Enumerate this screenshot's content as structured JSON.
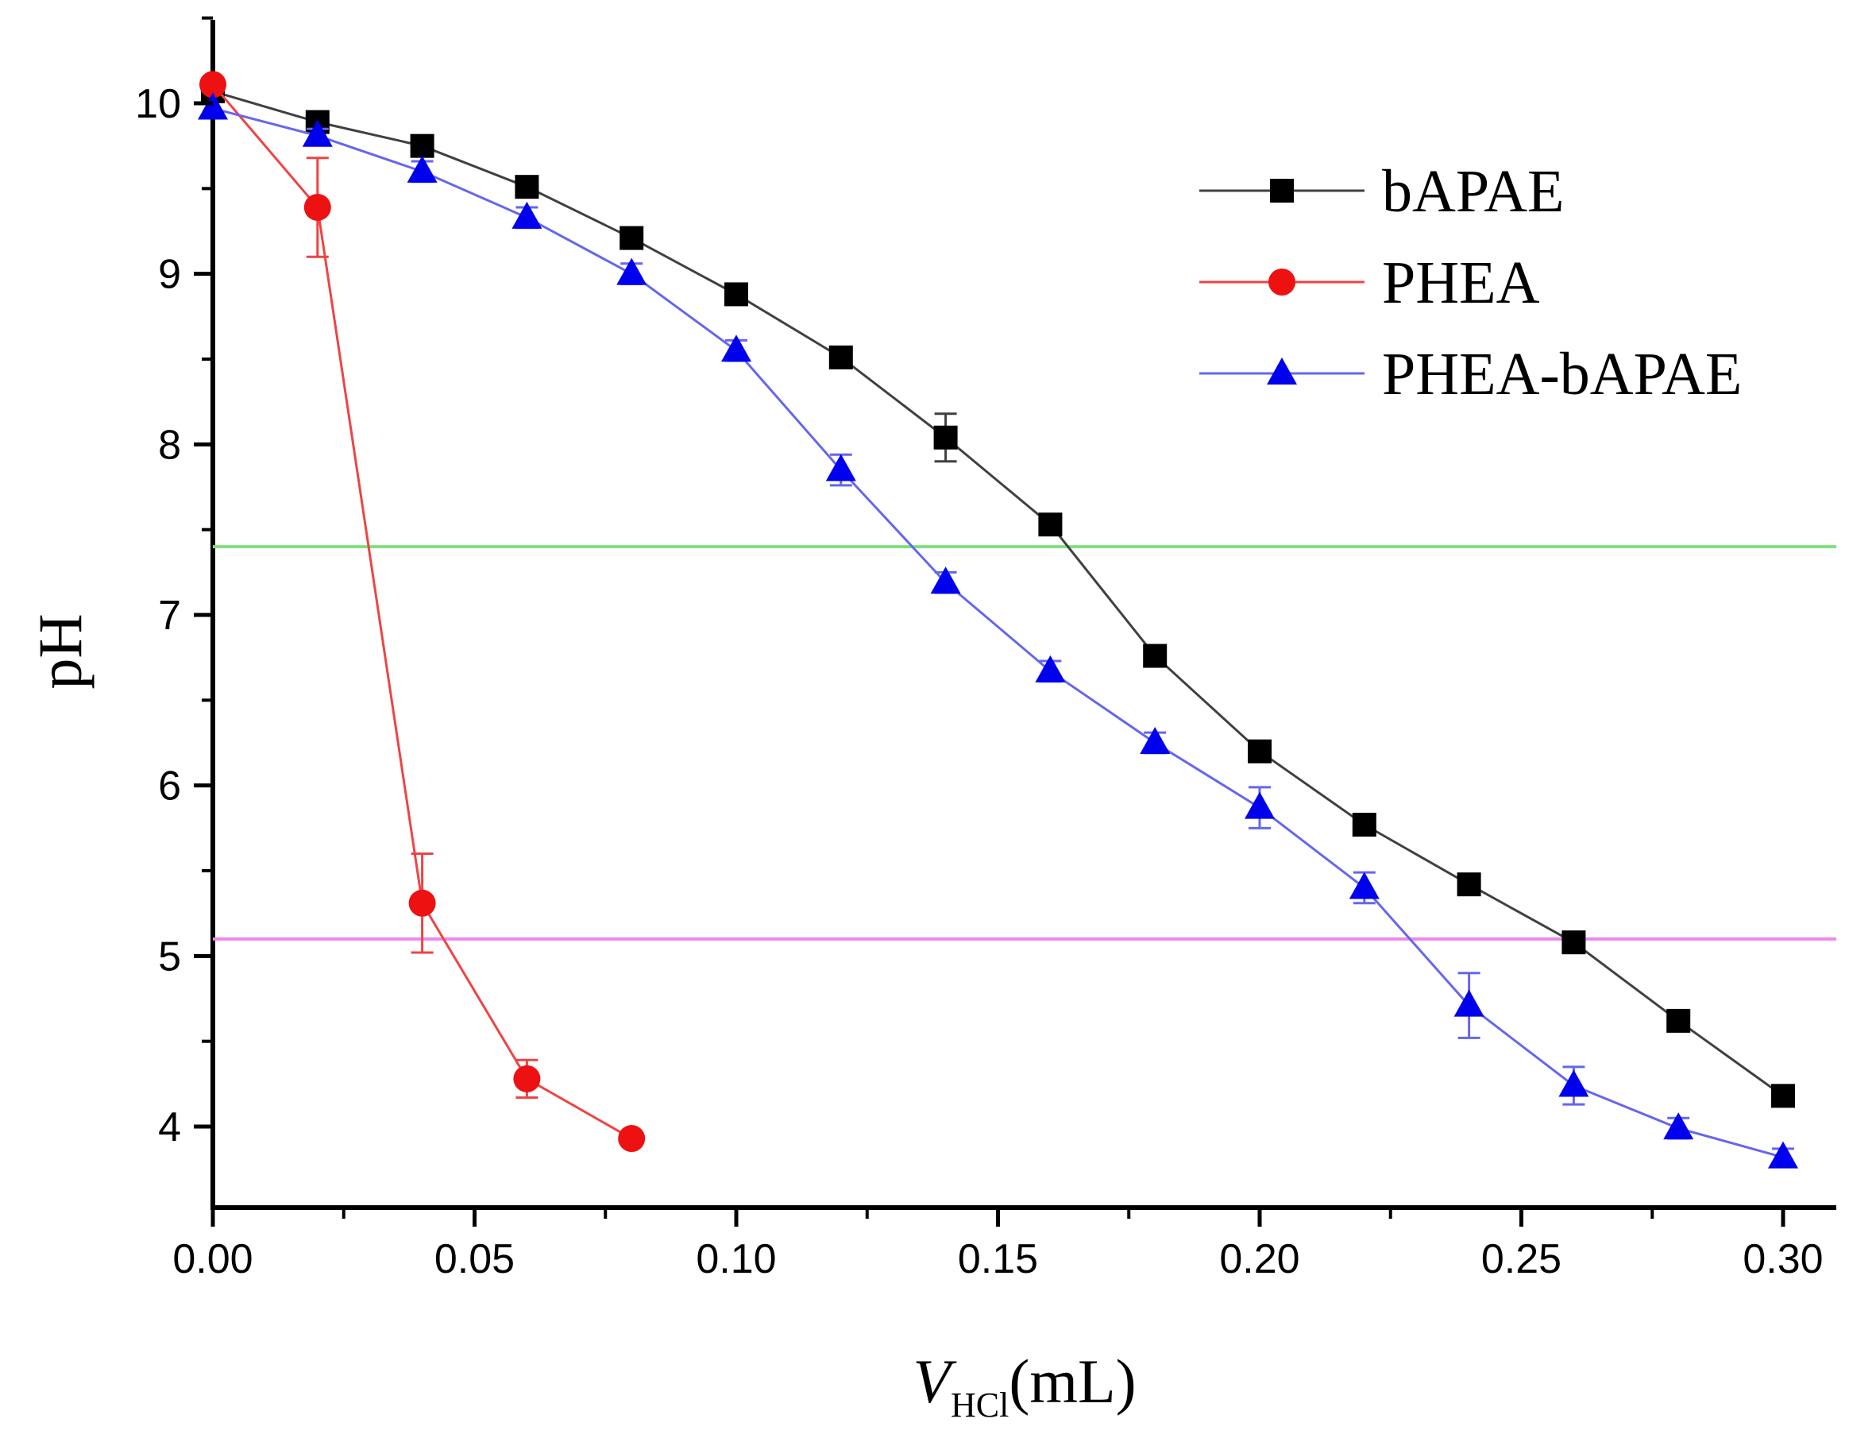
{
  "chart_data": {
    "type": "line",
    "title": "",
    "xlabel": {
      "main": "V",
      "sub": "HCl",
      "unit": "(mL)"
    },
    "ylabel": "pH",
    "xlim": [
      0.0,
      0.31
    ],
    "ylim": [
      3.55,
      10.5
    ],
    "xticks": [
      0.0,
      0.05,
      0.1,
      0.15,
      0.2,
      0.25,
      0.3
    ],
    "xtick_labels": [
      "0.00",
      "0.05",
      "0.10",
      "0.15",
      "0.20",
      "0.25",
      "0.30"
    ],
    "yticks": [
      4,
      5,
      6,
      7,
      8,
      9,
      10
    ],
    "ytick_labels": [
      "4",
      "5",
      "6",
      "7",
      "8",
      "9",
      "10"
    ],
    "legend_position": "top-right",
    "reference_lines": [
      {
        "y": 7.4,
        "color": "#7fe07f"
      },
      {
        "y": 5.1,
        "color": "#ee88ee"
      }
    ],
    "series": [
      {
        "name": "bAPAE",
        "color": "#000000",
        "line_color": "#404040",
        "marker": "square",
        "x": [
          0.0,
          0.02,
          0.04,
          0.06,
          0.08,
          0.1,
          0.12,
          0.14,
          0.16,
          0.18,
          0.2,
          0.22,
          0.24,
          0.26,
          0.28,
          0.3
        ],
        "y": [
          10.07,
          9.89,
          9.75,
          9.51,
          9.21,
          8.88,
          8.51,
          8.04,
          7.53,
          6.76,
          6.2,
          5.77,
          5.42,
          5.08,
          4.62,
          4.18
        ],
        "err": [
          0.0,
          0.03,
          0.03,
          0.03,
          0.03,
          0.03,
          0.06,
          0.14,
          0.03,
          0.03,
          0.03,
          0.03,
          0.03,
          0.03,
          0.03,
          0.03
        ]
      },
      {
        "name": "PHEA",
        "color": "#ee1111",
        "line_color": "#ee4444",
        "marker": "circle",
        "x": [
          0.0,
          0.02,
          0.04,
          0.06,
          0.08
        ],
        "y": [
          10.11,
          9.39,
          5.31,
          4.28,
          3.93
        ],
        "err": [
          0.0,
          0.29,
          0.29,
          0.11,
          0.0
        ]
      },
      {
        "name": "PHEA-bAPAE",
        "color": "#0000ee",
        "line_color": "#6666ee",
        "marker": "triangle",
        "x": [
          0.0,
          0.02,
          0.04,
          0.06,
          0.08,
          0.1,
          0.12,
          0.14,
          0.16,
          0.18,
          0.2,
          0.22,
          0.24,
          0.26,
          0.28,
          0.3
        ],
        "y": [
          9.97,
          9.81,
          9.6,
          9.33,
          9.0,
          8.55,
          7.85,
          7.19,
          6.67,
          6.25,
          5.87,
          5.4,
          4.71,
          4.24,
          3.99,
          3.82
        ],
        "err": [
          0.0,
          0.04,
          0.06,
          0.06,
          0.06,
          0.06,
          0.09,
          0.06,
          0.06,
          0.06,
          0.12,
          0.09,
          0.19,
          0.11,
          0.06,
          0.05
        ]
      }
    ]
  }
}
